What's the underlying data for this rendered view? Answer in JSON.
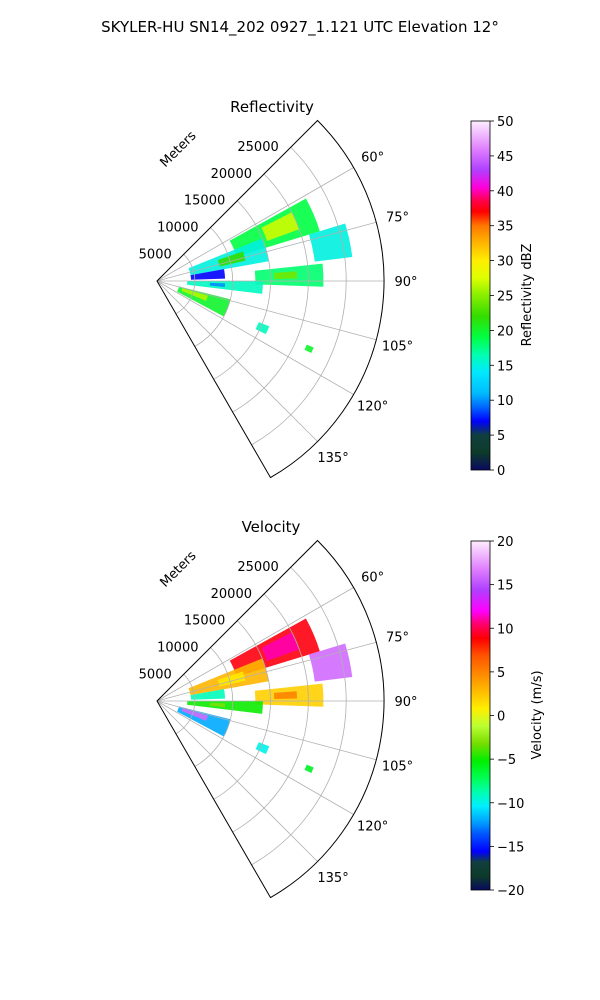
{
  "figure": {
    "title": "SKYLER-HU  SN14_202  0927_1.121 UTC Elevation 12°"
  },
  "chart_data": [
    {
      "type": "heatmap",
      "title": "Reflectivity",
      "radial_label": "Meters",
      "radial_ticks": [
        5000,
        10000,
        15000,
        20000,
        25000
      ],
      "azimuth_range_deg": [
        45,
        150
      ],
      "azimuth_ticks": [
        "60°",
        "75°",
        "90°",
        "105°",
        "120°",
        "135°"
      ],
      "range_max_m": 30000,
      "colorbar": {
        "label": "Reflectivity dBZ",
        "min": 0,
        "max": 50,
        "ticks": [
          "0",
          "5",
          "10",
          "15",
          "20",
          "25",
          "30",
          "35",
          "40",
          "45",
          "50"
        ]
      },
      "echo_regions": [
        {
          "az": [
            61,
            73
          ],
          "range": [
            11000,
            22500
          ],
          "value": 19
        },
        {
          "az": [
            63,
            70
          ],
          "range": [
            15500,
            20000
          ],
          "value": 27
        },
        {
          "az": [
            68,
            80
          ],
          "range": [
            4500,
            15000
          ],
          "value": 15
        },
        {
          "az": [
            71,
            77
          ],
          "range": [
            8500,
            12000
          ],
          "value": 22
        },
        {
          "az": [
            73,
            83
          ],
          "range": [
            21000,
            26000
          ],
          "value": 15
        },
        {
          "az": [
            84,
            92
          ],
          "range": [
            13000,
            22000
          ],
          "value": 18
        },
        {
          "az": [
            86,
            89
          ],
          "range": [
            15500,
            18500
          ],
          "value": 24
        },
        {
          "az": [
            90,
            97
          ],
          "range": [
            4000,
            14000
          ],
          "value": 16
        },
        {
          "az": [
            92,
            95
          ],
          "range": [
            7000,
            9000
          ],
          "value": 10
        },
        {
          "az": [
            80,
            88
          ],
          "range": [
            4500,
            9000
          ],
          "value": 7
        },
        {
          "az": [
            104,
            118
          ],
          "range": [
            3000,
            10000
          ],
          "value": 20
        },
        {
          "az": [
            106,
            112
          ],
          "range": [
            3500,
            7000
          ],
          "value": 26
        },
        {
          "az": [
            112,
            116
          ],
          "range": [
            14500,
            16000
          ],
          "value": 16
        },
        {
          "az": [
            113,
            115
          ],
          "range": [
            21500,
            22500
          ],
          "value": 20
        }
      ]
    },
    {
      "type": "heatmap",
      "title": "Velocity",
      "radial_label": "Meters",
      "radial_ticks": [
        5000,
        10000,
        15000,
        20000,
        25000
      ],
      "azimuth_range_deg": [
        45,
        150
      ],
      "azimuth_ticks": [
        "60°",
        "75°",
        "90°",
        "105°",
        "120°",
        "135°"
      ],
      "range_max_m": 30000,
      "colorbar": {
        "label": "Velocity (m/s)",
        "min": -20,
        "max": 20,
        "ticks": [
          "−20",
          "−15",
          "−10",
          "−5",
          "0",
          "5",
          "10",
          "15",
          "20"
        ]
      },
      "echo_regions": [
        {
          "az": [
            61,
            73
          ],
          "range": [
            11000,
            22500
          ],
          "value": 9
        },
        {
          "az": [
            63,
            70
          ],
          "range": [
            15500,
            20000
          ],
          "value": 11
        },
        {
          "az": [
            68,
            80
          ],
          "range": [
            4500,
            15000
          ],
          "value": 3
        },
        {
          "az": [
            71,
            77
          ],
          "range": [
            8500,
            12000
          ],
          "value": 1
        },
        {
          "az": [
            73,
            83
          ],
          "range": [
            21000,
            26000
          ],
          "value": 16
        },
        {
          "az": [
            84,
            92
          ],
          "range": [
            13000,
            22000
          ],
          "value": 2
        },
        {
          "az": [
            86,
            89
          ],
          "range": [
            15500,
            18500
          ],
          "value": 5
        },
        {
          "az": [
            90,
            97
          ],
          "range": [
            4000,
            14000
          ],
          "value": -5
        },
        {
          "az": [
            92,
            95
          ],
          "range": [
            7000,
            9000
          ],
          "value": -3
        },
        {
          "az": [
            80,
            88
          ],
          "range": [
            4500,
            9000
          ],
          "value": -9
        },
        {
          "az": [
            104,
            118
          ],
          "range": [
            3000,
            10000
          ],
          "value": -12
        },
        {
          "az": [
            106,
            112
          ],
          "range": [
            3500,
            7000
          ],
          "value": 16
        },
        {
          "az": [
            112,
            116
          ],
          "range": [
            14500,
            16000
          ],
          "value": -10
        },
        {
          "az": [
            113,
            115
          ],
          "range": [
            21500,
            22500
          ],
          "value": -6
        }
      ]
    }
  ]
}
